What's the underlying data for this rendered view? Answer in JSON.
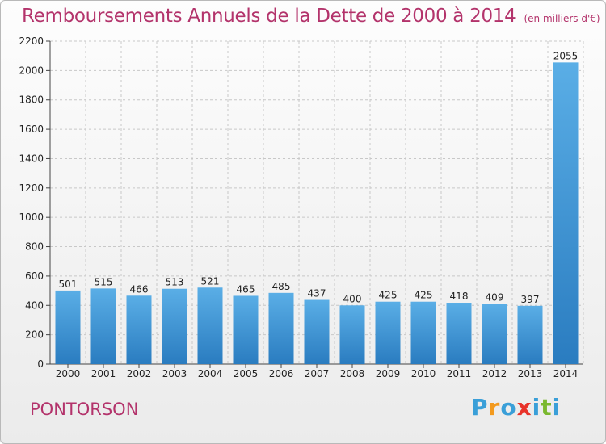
{
  "title": "Remboursements Annuels de la Dette de 2000 à 2014",
  "unit": "(en milliers d'€)",
  "city": "PONTORSON",
  "logo": {
    "letters": [
      "P",
      "r",
      "o",
      "x",
      "i",
      "t",
      "i"
    ],
    "colors": [
      "#3a9fd8",
      "#f39a1e",
      "#3a9fd8",
      "#e8332a",
      "#3a9fd8",
      "#7ab82f",
      "#3a9fd8"
    ]
  },
  "colors": {
    "title": "#b3336b",
    "bar_top": "#5aaee6",
    "bar_bottom": "#2a7cc0"
  },
  "chart_data": {
    "type": "bar",
    "categories": [
      "2000",
      "2001",
      "2002",
      "2003",
      "2004",
      "2005",
      "2006",
      "2007",
      "2008",
      "2009",
      "2010",
      "2011",
      "2012",
      "2013",
      "2014"
    ],
    "values": [
      501,
      515,
      466,
      513,
      521,
      465,
      485,
      437,
      400,
      425,
      425,
      418,
      409,
      397,
      2055
    ],
    "ylim": [
      0,
      2200
    ],
    "yticks": [
      0,
      200,
      400,
      600,
      800,
      1000,
      1200,
      1400,
      1600,
      1800,
      2000,
      2200
    ],
    "grid": true,
    "data_labels": true
  }
}
